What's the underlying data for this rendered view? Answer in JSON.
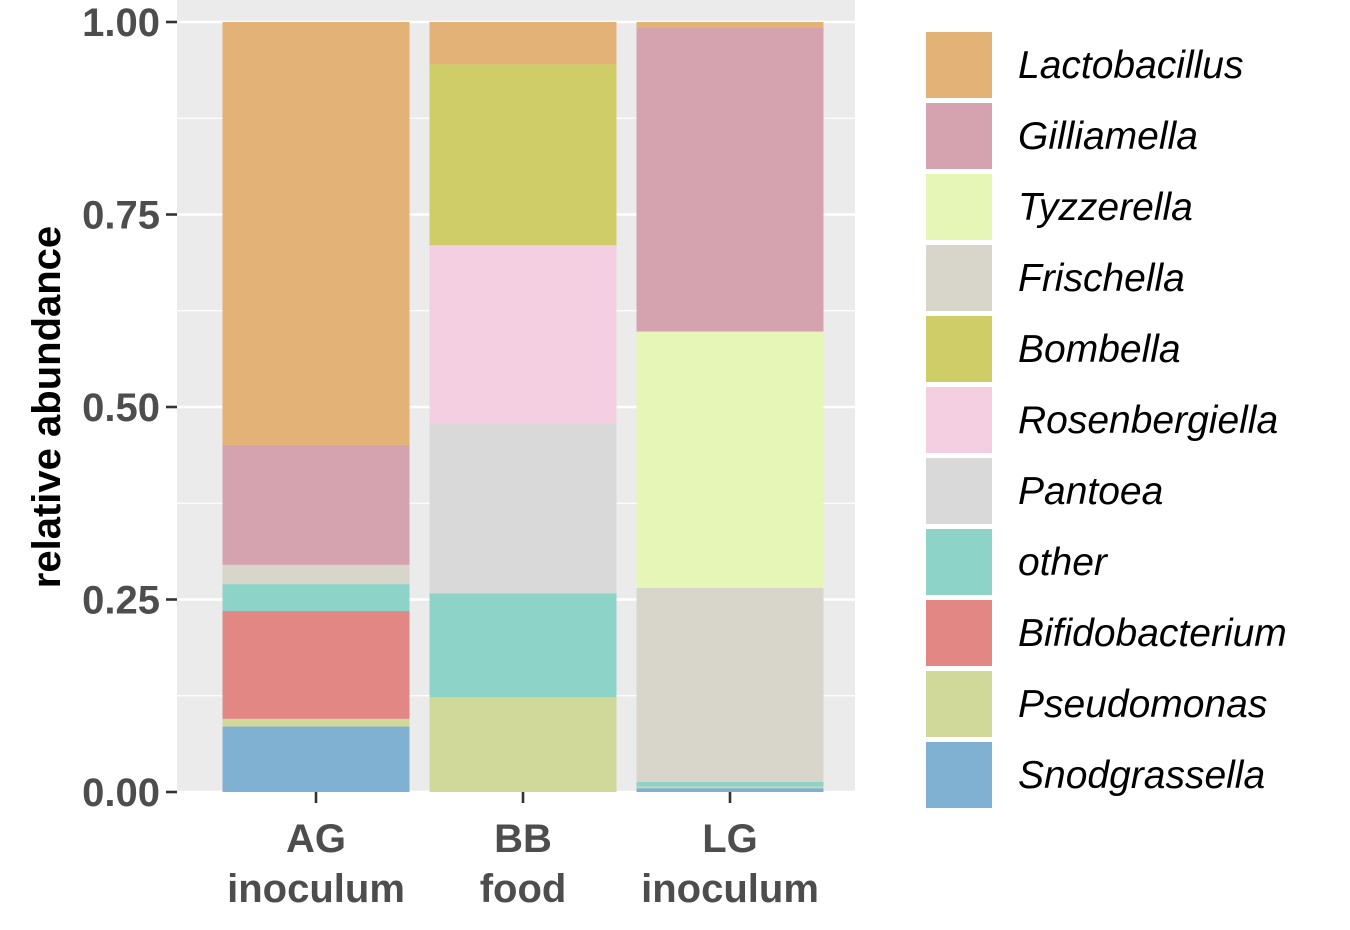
{
  "chart_data": {
    "type": "bar",
    "stacked": true,
    "title": "",
    "xlabel": "",
    "ylabel": "relative abundance",
    "ylim": [
      0,
      1
    ],
    "y_ticks": [
      "0.00",
      "0.25",
      "0.50",
      "0.75",
      "1.00"
    ],
    "y_tick_values": [
      0,
      0.25,
      0.5,
      0.75,
      1.0
    ],
    "grid": true,
    "legend_position": "right",
    "categories": [
      {
        "line1": "AG",
        "line2": "inoculum"
      },
      {
        "line1": "BB",
        "line2": "food"
      },
      {
        "line1": "LG",
        "line2": "inoculum"
      }
    ],
    "series": [
      {
        "name": "Snodgrassella",
        "color": "#80b1d3",
        "values": [
          0.085,
          0.0,
          0.005
        ]
      },
      {
        "name": "Pseudomonas",
        "color": "#d0d89a",
        "values": [
          0.01,
          0.123,
          0.002
        ]
      },
      {
        "name": "Bifidobacterium",
        "color": "#e28783",
        "values": [
          0.14,
          0.0,
          0.0
        ]
      },
      {
        "name": "other",
        "color": "#8ed3c7",
        "values": [
          0.035,
          0.135,
          0.006
        ]
      },
      {
        "name": "Pantoea",
        "color": "#d9d9d9",
        "values": [
          0.0,
          0.22,
          0.0
        ]
      },
      {
        "name": "Rosenbergiella",
        "color": "#f4cfe2",
        "values": [
          0.0,
          0.232,
          0.0
        ]
      },
      {
        "name": "Bombella",
        "color": "#cfcd68",
        "values": [
          0.0,
          0.235,
          0.0
        ]
      },
      {
        "name": "Frischella",
        "color": "#d8d6ca",
        "values": [
          0.025,
          0.0,
          0.252
        ]
      },
      {
        "name": "Tyzzerella",
        "color": "#e6f6b6",
        "values": [
          0.0,
          0.0,
          0.333
        ]
      },
      {
        "name": "Gilliamella",
        "color": "#d5a2b0",
        "values": [
          0.155,
          0.0,
          0.395
        ]
      },
      {
        "name": "Lactobacillus",
        "color": "#e2b277",
        "values": [
          0.55,
          0.055,
          0.007
        ]
      }
    ],
    "legend_order": [
      "Lactobacillus",
      "Gilliamella",
      "Tyzzerella",
      "Frischella",
      "Bombella",
      "Rosenbergiella",
      "Pantoea",
      "other",
      "Bifidobacterium",
      "Pseudomonas",
      "Snodgrassella"
    ]
  }
}
